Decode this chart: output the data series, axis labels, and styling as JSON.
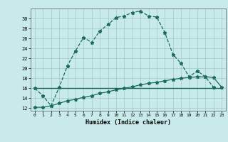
{
  "xlabel": "Humidex (Indice chaleur)",
  "bg_color": "#c8eaea",
  "grid_color": "#a0c8c8",
  "line_color": "#1a6b5a",
  "xlim": [
    -0.5,
    23.5
  ],
  "ylim": [
    11.5,
    32.0
  ],
  "yticks": [
    12,
    14,
    16,
    18,
    20,
    22,
    24,
    26,
    28,
    30
  ],
  "xticks": [
    0,
    1,
    2,
    3,
    4,
    5,
    6,
    7,
    8,
    9,
    10,
    11,
    12,
    13,
    14,
    15,
    16,
    17,
    18,
    19,
    20,
    21,
    22,
    23
  ],
  "curve1_x": [
    0,
    1,
    2,
    3,
    4,
    5,
    6,
    7,
    8,
    9,
    10,
    11,
    12,
    13,
    14,
    15,
    16,
    17,
    18,
    19,
    20,
    21,
    22
  ],
  "curve1_y": [
    16.0,
    14.5,
    12.5,
    16.2,
    20.5,
    23.5,
    26.2,
    25.2,
    27.5,
    28.8,
    30.2,
    30.5,
    31.2,
    31.5,
    30.5,
    30.3,
    27.2,
    22.8,
    21.0,
    18.3,
    19.5,
    18.3,
    16.2
  ],
  "curve2_x": [
    0,
    1,
    2,
    3,
    4,
    5,
    6,
    7,
    8,
    9,
    10,
    11,
    12,
    13,
    14,
    15,
    16,
    17,
    18,
    19,
    20,
    21,
    22,
    23
  ],
  "curve2_y": [
    16.0,
    16.0,
    16.0,
    16.0,
    16.0,
    16.0,
    16.0,
    16.0,
    16.0,
    16.0,
    16.0,
    16.0,
    16.0,
    16.0,
    16.0,
    16.0,
    16.0,
    16.0,
    16.0,
    16.0,
    16.0,
    16.0,
    16.0,
    16.0
  ],
  "curve3_x": [
    0,
    1,
    2,
    3,
    4,
    5,
    6,
    7,
    8,
    9,
    10,
    11,
    12,
    13,
    14,
    15,
    16,
    17,
    18,
    19,
    20,
    21,
    22,
    23
  ],
  "curve3_y": [
    12.2,
    12.2,
    12.5,
    13.0,
    13.5,
    13.8,
    14.2,
    14.5,
    15.0,
    15.3,
    15.7,
    16.0,
    16.3,
    16.7,
    17.0,
    17.2,
    17.5,
    17.8,
    18.0,
    18.2,
    18.3,
    18.3,
    18.2,
    16.2
  ]
}
